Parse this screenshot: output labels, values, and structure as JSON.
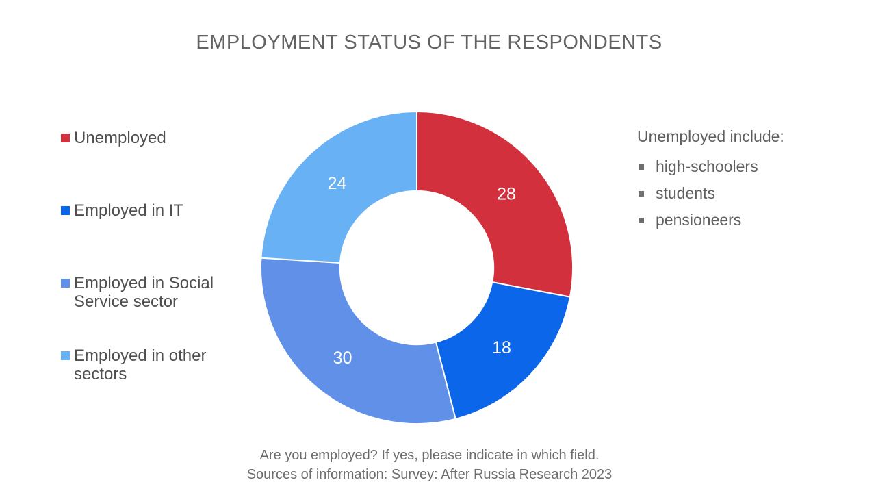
{
  "title": "EMPLOYMENT STATUS OF THE RESPONDENTS",
  "legend": {
    "items": [
      {
        "label": "Unemployed",
        "color": "#D2303D"
      },
      {
        "label": "Employed in IT",
        "color": "#0C66EA"
      },
      {
        "label": "Employed in Social Service sector",
        "color": "#6190E9"
      },
      {
        "label": "Employed in other sectors",
        "color": "#69B1F5"
      }
    ]
  },
  "chart_data": {
    "type": "pie",
    "subtype": "donut",
    "title": "EMPLOYMENT STATUS OF THE RESPONDENTS",
    "categories": [
      "Unemployed",
      "Employed in IT",
      "Employed in Social Service sector",
      "Employed in other sectors"
    ],
    "values": [
      28,
      18,
      30,
      24
    ],
    "colors": [
      "#D2303D",
      "#0C66EA",
      "#6190E9",
      "#69B1F5"
    ],
    "data_labels": [
      "28",
      "18",
      "30",
      "24"
    ],
    "label_color": "#FFFFFF",
    "start_angle_deg": 0,
    "direction": "clockwise",
    "donut_hole_ratio": 0.492,
    "slice_border_color": "#FFFFFF",
    "legend_position": "left"
  },
  "side_panel": {
    "heading": "Unemployed include:",
    "bullets": [
      "high-schoolers",
      "students",
      "pensioneers"
    ]
  },
  "footer": {
    "line1": "Are you employed? If yes, please indicate in which field.",
    "line2": "Sources of information: Survey: After Russia Research 2023"
  }
}
